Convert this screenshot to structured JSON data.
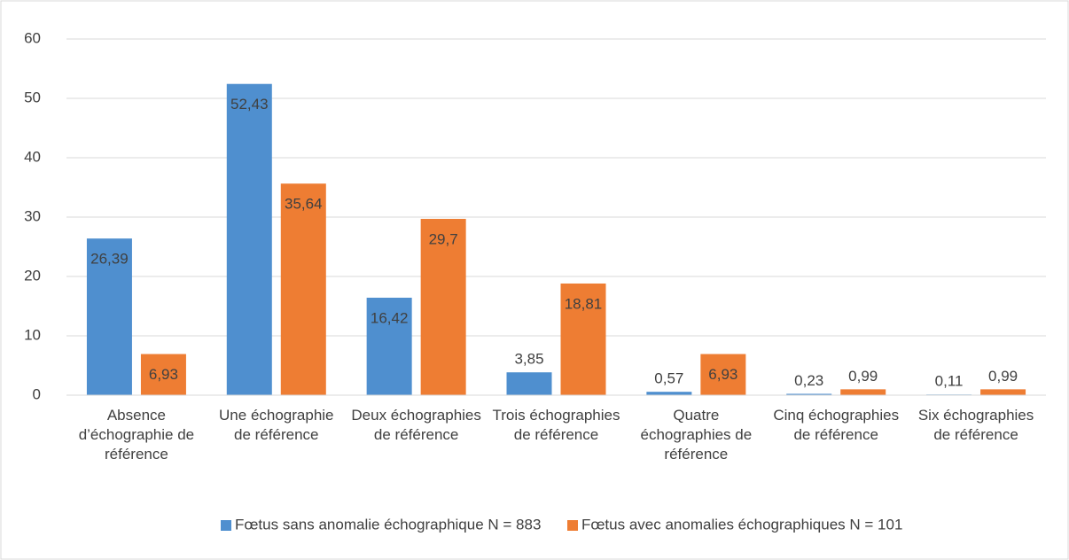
{
  "chart_data": {
    "type": "bar",
    "categories": [
      "Absence d’échographie de référence",
      "Une échographie de référence",
      "Deux échographies de référence",
      "Trois échographies de référence",
      "Quatre échographies de référence",
      "Cinq échographies de référence",
      "Six échographies de référence"
    ],
    "series": [
      {
        "name": "Fœtus sans anomalie échographique N = 883",
        "color": "#4f8fcf",
        "values": [
          26.39,
          52.43,
          16.42,
          3.85,
          0.57,
          0.23,
          0.11
        ],
        "value_labels": [
          "26,39",
          "52,43",
          "16,42",
          "3,85",
          "0,57",
          "0,23",
          "0,11"
        ]
      },
      {
        "name": "Fœtus avec anomalies échographiques N = 101",
        "color": "#ee7d33",
        "values": [
          6.93,
          35.64,
          29.7,
          18.81,
          6.93,
          0.99,
          0.99
        ],
        "value_labels": [
          "6,93",
          "35,64",
          "29,7",
          "18,81",
          "6,93",
          "0,99",
          "0,99"
        ]
      }
    ],
    "ylim": [
      0,
      60
    ],
    "yticks": [
      0,
      10,
      20,
      30,
      40,
      50,
      60
    ],
    "grid": true,
    "legend": "bottom"
  }
}
